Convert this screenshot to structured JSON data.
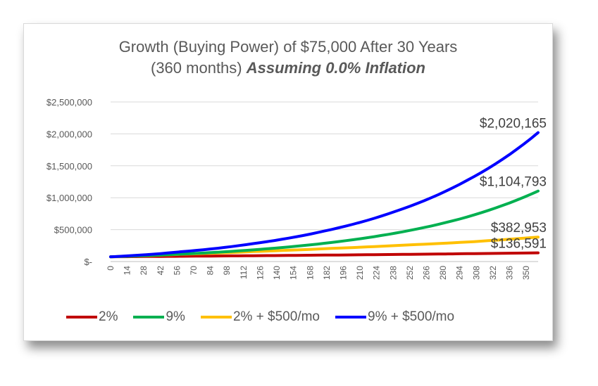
{
  "chart_data": {
    "type": "line",
    "title": "Growth (Buying Power) of $75,000 After 30 Years",
    "title_line2": "(360 months) ",
    "title_emphasis": "Assuming 0.0% Inflation",
    "xlabel": "",
    "ylabel": "",
    "ylim": [
      0,
      2500000
    ],
    "xlim": [
      0,
      360
    ],
    "y_ticks": [
      0,
      500000,
      1000000,
      1500000,
      2000000,
      2500000
    ],
    "y_tick_labels": [
      "$-",
      "$500,000",
      "$1,000,000",
      "$1,500,000",
      "$2,000,000",
      "$2,500,000"
    ],
    "x_ticks": [
      0,
      14,
      28,
      42,
      56,
      70,
      84,
      98,
      112,
      126,
      140,
      154,
      168,
      182,
      196,
      210,
      224,
      238,
      252,
      266,
      280,
      294,
      308,
      322,
      336,
      350
    ],
    "grid": true,
    "legend_position": "bottom",
    "series": [
      {
        "name": "2%",
        "color": "#c00000",
        "start": 75000,
        "end": 136591,
        "end_label": "$136,591",
        "x": [
          0,
          60,
          120,
          180,
          240,
          300,
          360
        ],
        "values": [
          75000,
          82800,
          91400,
          100900,
          111400,
          123000,
          136591
        ]
      },
      {
        "name": "9%",
        "color": "#00b050",
        "start": 75000,
        "end": 1104793,
        "end_label": "$1,104,793",
        "x": [
          0,
          60,
          120,
          180,
          240,
          300,
          360
        ],
        "values": [
          75000,
          117000,
          183000,
          286000,
          446000,
          697000,
          1104793
        ]
      },
      {
        "name": "2% + $500/mo",
        "color": "#ffc000",
        "start": 75000,
        "end": 382953,
        "end_label": "$382,953",
        "x": [
          0,
          60,
          120,
          180,
          240,
          300,
          360
        ],
        "values": [
          75000,
          114000,
          156000,
          201000,
          251000,
          305000,
          382953
        ]
      },
      {
        "name": "9% + $500/mo",
        "color": "#0000ff",
        "start": 75000,
        "end": 2020165,
        "end_label": "$2,020,165",
        "x": [
          0,
          60,
          120,
          180,
          240,
          300,
          360
        ],
        "values": [
          75000,
          155000,
          281000,
          478000,
          787000,
          1270000,
          2020165
        ]
      }
    ]
  }
}
